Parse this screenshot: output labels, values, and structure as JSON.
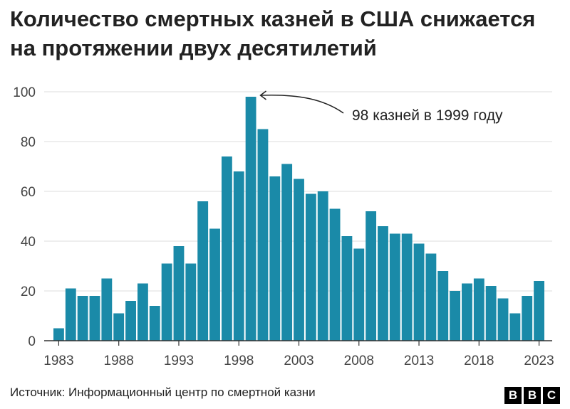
{
  "title": "Количество смертных казней в США снижается на протяжении двух десятилетий",
  "source": "Источник: Информационный центр по смертной казни",
  "logo": [
    "B",
    "B",
    "C"
  ],
  "colors": {
    "bar": "#1a8aa8",
    "text": "#222222",
    "axis": "#333333",
    "grid": "#dddddd"
  },
  "chart_data": {
    "type": "bar",
    "categories": [
      1983,
      1984,
      1985,
      1986,
      1987,
      1988,
      1989,
      1990,
      1991,
      1992,
      1993,
      1994,
      1995,
      1996,
      1997,
      1998,
      1999,
      2000,
      2001,
      2002,
      2003,
      2004,
      2005,
      2006,
      2007,
      2008,
      2009,
      2010,
      2011,
      2012,
      2013,
      2014,
      2015,
      2016,
      2017,
      2018,
      2019,
      2020,
      2021,
      2022,
      2023
    ],
    "values": [
      5,
      21,
      18,
      18,
      25,
      11,
      16,
      23,
      14,
      31,
      38,
      31,
      56,
      45,
      74,
      68,
      98,
      85,
      66,
      71,
      65,
      59,
      60,
      53,
      42,
      37,
      52,
      46,
      43,
      43,
      39,
      35,
      28,
      20,
      23,
      25,
      22,
      17,
      11,
      18,
      24
    ],
    "xticks": [
      "1983",
      "1988",
      "1993",
      "1998",
      "2003",
      "2008",
      "2013",
      "2018",
      "2023"
    ],
    "yticks": [
      "0",
      "20",
      "40",
      "60",
      "80",
      "100"
    ],
    "ylim": [
      0,
      100
    ],
    "grid": true,
    "annotation": {
      "text": "98 казней в 1999 году",
      "year": 1999
    }
  }
}
